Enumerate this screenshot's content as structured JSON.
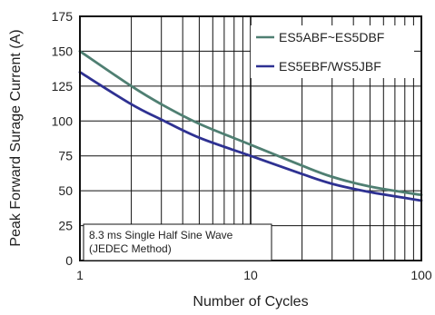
{
  "chart_data": {
    "type": "line",
    "xlabel": "Number of Cycles",
    "ylabel": "Peak Forward Surage Current (A)",
    "x_scale": "log",
    "xlim": [
      1,
      100
    ],
    "ylim": [
      0,
      175
    ],
    "x_ticks": [
      1,
      10,
      100
    ],
    "y_ticks": [
      0,
      25,
      50,
      75,
      100,
      125,
      150,
      175
    ],
    "grid": true,
    "legend_position": "top-right",
    "series": [
      {
        "name": "ES5ABF~ES5DBF",
        "color": "#4f7f72",
        "x": [
          1,
          2,
          3,
          5,
          10,
          20,
          30,
          50,
          100
        ],
        "y": [
          150,
          125,
          112,
          98,
          83,
          68,
          60,
          53,
          47
        ]
      },
      {
        "name": "ES5EBF/WS5JBF",
        "color": "#2e3192",
        "x": [
          1,
          2,
          3,
          5,
          10,
          20,
          30,
          50,
          100
        ],
        "y": [
          135,
          112,
          101,
          88,
          75,
          62,
          55,
          49,
          43
        ]
      }
    ],
    "annotation": {
      "lines": [
        "8.3 ms Single Half Sine Wave",
        "(JEDEC Method)"
      ]
    }
  }
}
